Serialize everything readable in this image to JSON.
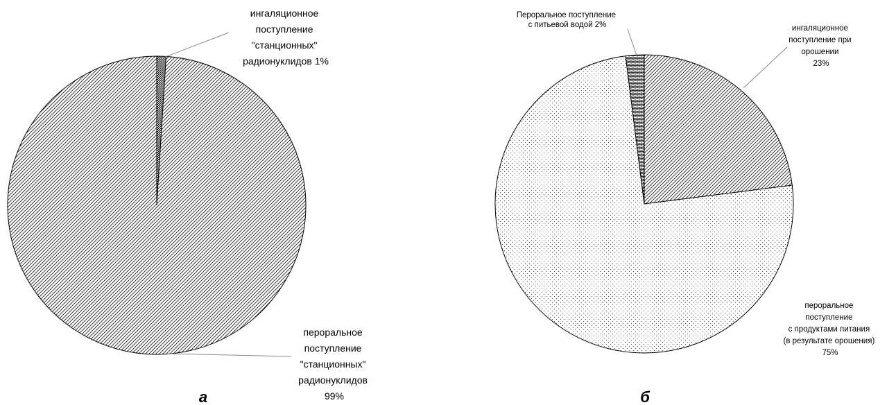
{
  "chart_data": [
    {
      "type": "pie",
      "panel_label": "а",
      "slices": [
        {
          "label": "ингаляционное поступление \"станционных\" радионуклидов",
          "value": 1,
          "value_label": "1%",
          "pattern": "checker"
        },
        {
          "label": "пероральное поступление \"станционных\" радионуклидов",
          "value": 99,
          "value_label": "99%",
          "pattern": "hatch"
        }
      ],
      "label_lines": [
        [
          "ингаляционное",
          "поступление",
          "\"станционных\"",
          "радионуклидов 1%"
        ],
        [
          "пероральное",
          "поступление",
          "\"станционных\"",
          "радионуклидов",
          "99%"
        ]
      ]
    },
    {
      "type": "pie",
      "panel_label": "б",
      "slices": [
        {
          "label": "ингаляционное поступление при орошении",
          "value": 23,
          "value_label": "23%",
          "pattern": "hatch"
        },
        {
          "label": "пероральное поступление с продуктами питания (в результате орошения)",
          "value": 75,
          "value_label": "75%",
          "pattern": "dots"
        },
        {
          "label": "Пероральное поступление с питьевой водой",
          "value": 2,
          "value_label": "2%",
          "pattern": "brick"
        }
      ],
      "label_lines": [
        [
          "ингаляционное",
          "поступление при",
          "орошении",
          "23%"
        ],
        [
          "пероральное",
          "поступление",
          "с продуктами питания",
          "(в результате орошения)",
          "75%"
        ],
        [
          "Пероральное поступление",
          "с питьевой водой 2%"
        ]
      ]
    }
  ]
}
